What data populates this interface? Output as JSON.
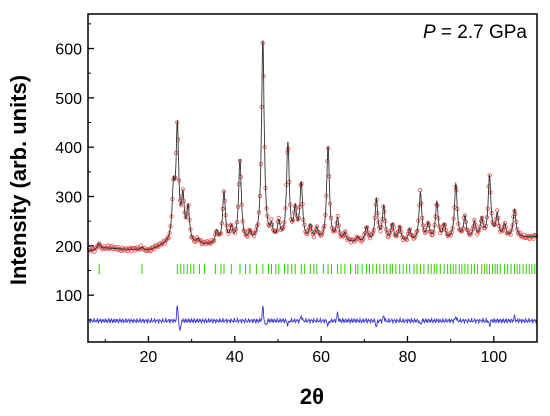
{
  "chart_data": {
    "type": "line",
    "title": "",
    "annotation": {
      "variable": "P",
      "rest": " = 2.7 GPa"
    },
    "xlabel": "2θ",
    "ylabel": "Intensity (arb. units)",
    "xlim": [
      6,
      110
    ],
    "ylim": [
      5,
      670
    ],
    "xticks": [
      20,
      40,
      60,
      80,
      100
    ],
    "yticks": [
      100,
      200,
      300,
      400,
      500,
      600
    ],
    "grid": false,
    "legend": "none",
    "colors": {
      "observed": "#e05050",
      "calculated": "#333333",
      "difference": "#3a3ad0",
      "bragg": "#33cc00"
    },
    "peaks": [
      {
        "x": 8.5,
        "y": 205
      },
      {
        "x": 18.5,
        "y": 196
      },
      {
        "x": 25.8,
        "y": 300
      },
      {
        "x": 26.7,
        "y": 430
      },
      {
        "x": 28.0,
        "y": 285
      },
      {
        "x": 29.2,
        "y": 270
      },
      {
        "x": 31.5,
        "y": 210
      },
      {
        "x": 35.8,
        "y": 225
      },
      {
        "x": 37.5,
        "y": 305
      },
      {
        "x": 39.2,
        "y": 230
      },
      {
        "x": 41.2,
        "y": 370
      },
      {
        "x": 43.5,
        "y": 220
      },
      {
        "x": 46.5,
        "y": 612
      },
      {
        "x": 48.5,
        "y": 230
      },
      {
        "x": 50.2,
        "y": 240
      },
      {
        "x": 52.3,
        "y": 402
      },
      {
        "x": 54.0,
        "y": 265
      },
      {
        "x": 55.4,
        "y": 320
      },
      {
        "x": 57.5,
        "y": 235
      },
      {
        "x": 59.0,
        "y": 230
      },
      {
        "x": 61.6,
        "y": 398
      },
      {
        "x": 63.8,
        "y": 250
      },
      {
        "x": 65.5,
        "y": 222
      },
      {
        "x": 68.5,
        "y": 215
      },
      {
        "x": 70.5,
        "y": 235
      },
      {
        "x": 72.8,
        "y": 290
      },
      {
        "x": 74.5,
        "y": 275
      },
      {
        "x": 76.5,
        "y": 240
      },
      {
        "x": 78.2,
        "y": 235
      },
      {
        "x": 80.5,
        "y": 230
      },
      {
        "x": 83.0,
        "y": 305
      },
      {
        "x": 84.8,
        "y": 240
      },
      {
        "x": 86.8,
        "y": 285
      },
      {
        "x": 88.5,
        "y": 238
      },
      {
        "x": 91.2,
        "y": 322
      },
      {
        "x": 93.3,
        "y": 255
      },
      {
        "x": 95.5,
        "y": 245
      },
      {
        "x": 97.2,
        "y": 250
      },
      {
        "x": 99.0,
        "y": 338
      },
      {
        "x": 100.8,
        "y": 260
      },
      {
        "x": 102.5,
        "y": 240
      },
      {
        "x": 104.8,
        "y": 272
      }
    ],
    "background": [
      [
        7,
        190
      ],
      [
        10,
        195
      ],
      [
        20,
        190
      ],
      [
        24,
        200
      ],
      [
        35,
        200
      ],
      [
        60,
        205
      ],
      [
        80,
        205
      ],
      [
        95,
        210
      ],
      [
        110,
        218
      ]
    ],
    "difference_offset": 48,
    "difference_spikes": [
      {
        "x": 26.7,
        "y": 28
      },
      {
        "x": 27.3,
        "y": -22
      },
      {
        "x": 46.5,
        "y": 27
      },
      {
        "x": 47.2,
        "y": -10
      },
      {
        "x": 52.3,
        "y": -8
      },
      {
        "x": 55.4,
        "y": 10
      },
      {
        "x": 61.6,
        "y": -10
      },
      {
        "x": 63.8,
        "y": 15
      },
      {
        "x": 72.8,
        "y": -12
      },
      {
        "x": 74.5,
        "y": 10
      },
      {
        "x": 83.0,
        "y": -8
      },
      {
        "x": 91.2,
        "y": 8
      },
      {
        "x": 99.0,
        "y": -10
      },
      {
        "x": 104.8,
        "y": 8
      }
    ],
    "bragg_y": 153,
    "bragg_positions": [
      8.6,
      18.5,
      26.7,
      27.5,
      28.2,
      29.0,
      29.8,
      30.5,
      31.8,
      33.0,
      35.5,
      36.8,
      37.5,
      39.2,
      41.2,
      42.5,
      43.5,
      45.0,
      46.5,
      47.8,
      48.5,
      49.5,
      50.2,
      51.5,
      52.3,
      53.2,
      54.0,
      55.4,
      56.2,
      57.5,
      58.3,
      59.0,
      60.5,
      61.6,
      62.4,
      63.8,
      64.6,
      65.5,
      66.8,
      68.0,
      68.5,
      69.5,
      70.5,
      71.2,
      72.0,
      72.8,
      73.6,
      74.5,
      75.2,
      76.0,
      76.5,
      77.3,
      78.2,
      79.0,
      79.8,
      80.5,
      81.5,
      82.2,
      83.0,
      83.8,
      84.8,
      85.5,
      86.2,
      86.8,
      87.6,
      88.5,
      89.3,
      90.0,
      90.6,
      91.2,
      92.0,
      92.6,
      93.3,
      94.0,
      94.8,
      95.5,
      96.2,
      97.2,
      97.8,
      98.4,
      99.0,
      99.7,
      100.3,
      100.8,
      101.5,
      102.5,
      103.2,
      104.0,
      104.8,
      105.4,
      106.0,
      106.8,
      107.5,
      108.2,
      108.8,
      109.5
    ]
  }
}
